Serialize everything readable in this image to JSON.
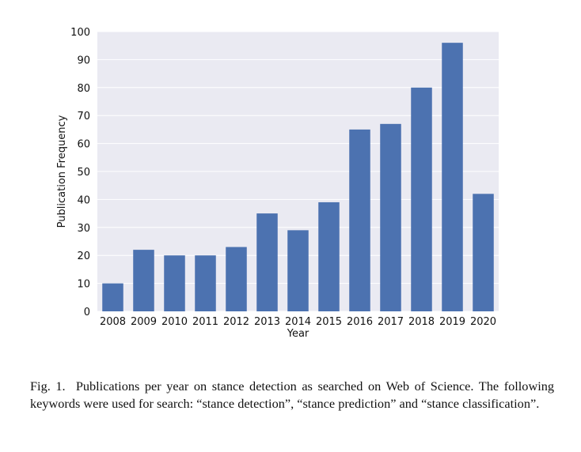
{
  "chart_data": {
    "type": "bar",
    "categories": [
      "2008",
      "2009",
      "2010",
      "2011",
      "2012",
      "2013",
      "2014",
      "2015",
      "2016",
      "2017",
      "2018",
      "2019",
      "2020"
    ],
    "values": [
      10,
      22,
      20,
      20,
      23,
      35,
      29,
      39,
      65,
      67,
      80,
      96,
      42
    ],
    "xlabel": "Year",
    "ylabel": "Publication Frequency",
    "ylim": [
      0,
      100
    ],
    "yticks": [
      0,
      10,
      20,
      30,
      40,
      50,
      60,
      70,
      80,
      90,
      100
    ],
    "grid": true,
    "bar_color": "#4c72b0",
    "plot_background": "#eaeaf2",
    "grid_color": "#ffffff"
  },
  "caption": {
    "label": "Fig. 1.",
    "text": "Publications per year on stance detection as searched on Web of Science. The following keywords were used for search: “stance detection”, “stance prediction” and “stance classification”."
  }
}
